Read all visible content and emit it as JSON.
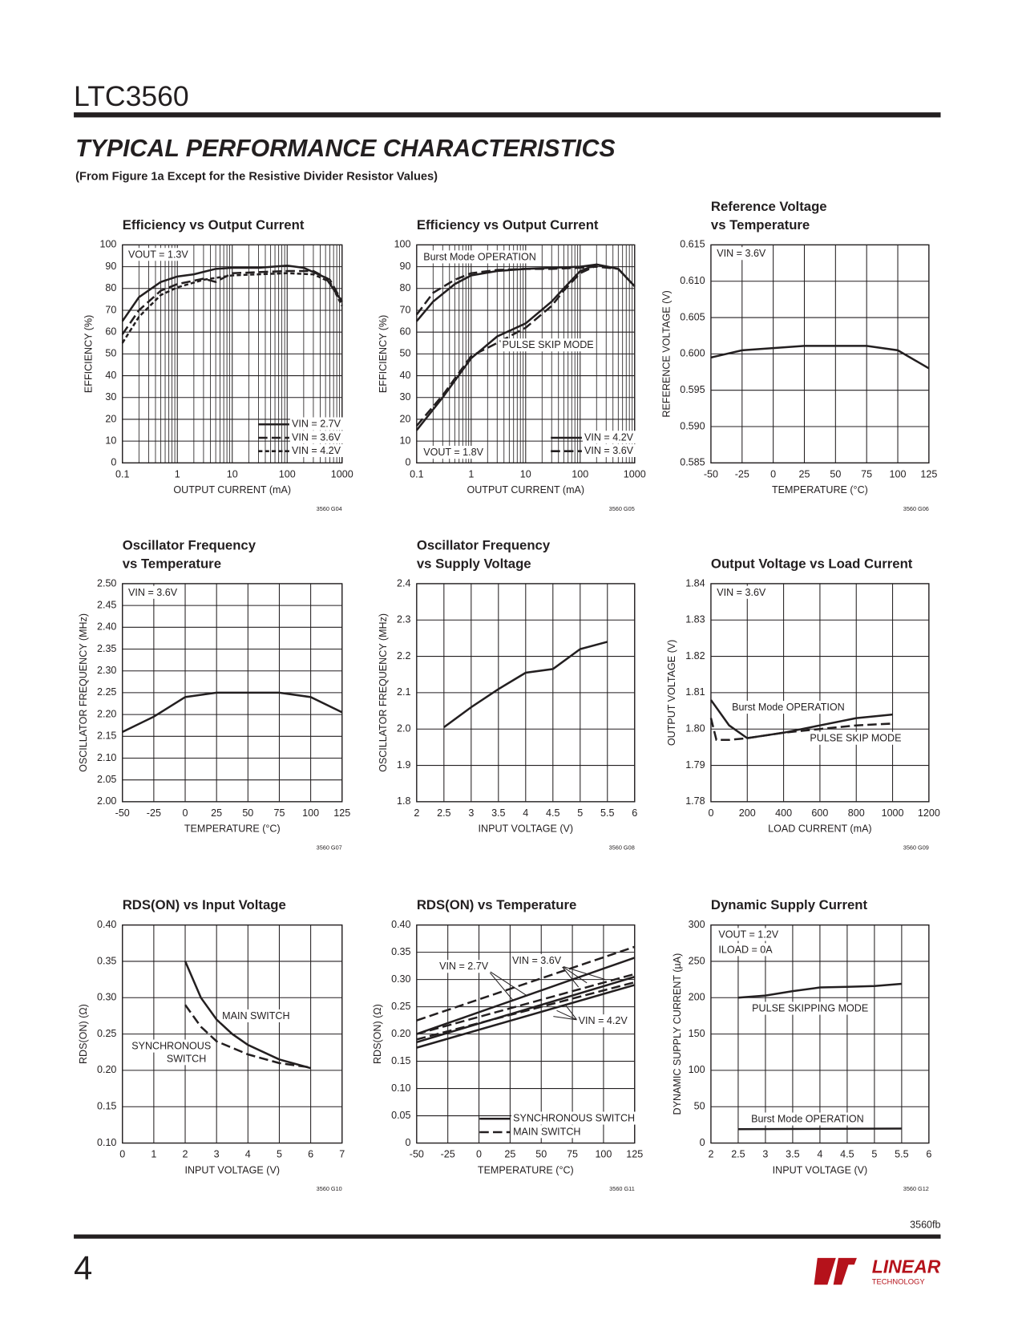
{
  "header": {
    "part": "LTC3560",
    "section": "TYPICAL PERFORMANCE CHARACTERISTICS",
    "subtitle": "(From Figure 1a Except for the Resistive Divider Resistor Values)"
  },
  "footer": {
    "doc_id": "3560fb",
    "page": "4",
    "logo_top": "LINEAR",
    "logo_bottom": "TECHNOLOGY"
  },
  "chart_data": [
    {
      "type": "line",
      "title": [
        "Efficiency vs Output Current"
      ],
      "xlabel": "OUTPUT CURRENT (mA)",
      "ylabel": "EFFICIENCY (%)",
      "figure_id": "3560 G04",
      "xlog": true,
      "grid": true,
      "color": "#231f20",
      "legend": "lower right",
      "xlim": [
        0.1,
        1000
      ],
      "xticks": [
        0.1,
        1,
        10,
        100,
        1000
      ],
      "ylim": [
        0,
        100
      ],
      "yticks": [
        0,
        10,
        20,
        30,
        40,
        50,
        60,
        70,
        80,
        90,
        100
      ],
      "annotations": [
        "VOUT = 1.3V"
      ],
      "series": [
        {
          "name": "VIN = 2.7V",
          "style": "solid",
          "curves": [
            {
              "x": [
                0.1,
                0.2,
                0.5,
                1,
                2,
                5,
                10,
                30,
                100,
                200,
                500,
                1000
              ],
              "y": [
                65,
                76,
                83,
                85.5,
                86.5,
                89,
                89.5,
                89.5,
                90.5,
                89.5,
                85,
                74
              ]
            }
          ]
        },
        {
          "name": "VIN = 3.6V",
          "style": "dashed",
          "curves": [
            {
              "x": [
                0.1,
                0.2,
                0.5,
                1,
                3,
                5,
                10,
                30,
                100,
                300,
                600,
                1000
              ],
              "y": [
                59,
                70,
                79,
                82,
                84.5,
                83,
                87,
                87.5,
                88,
                88,
                84,
                74
              ]
            }
          ]
        },
        {
          "name": "VIN = 4.2V",
          "style": "short",
          "curves": [
            {
              "x": [
                0.1,
                0.2,
                0.5,
                1,
                3,
                10,
                30,
                100,
                300,
                600,
                1000
              ],
              "y": [
                55,
                67,
                77,
                80.5,
                84,
                86,
                86.5,
                87,
                86.5,
                83,
                72
              ]
            }
          ]
        }
      ]
    },
    {
      "type": "line",
      "title": [
        "Efficiency vs Output Current"
      ],
      "xlabel": "OUTPUT CURRENT (mA)",
      "ylabel": "EFFICIENCY (%)",
      "figure_id": "3560 G05",
      "xlog": true,
      "grid": true,
      "color": "#231f20",
      "legend": "lower right",
      "xlim": [
        0.1,
        1000
      ],
      "xticks": [
        0.1,
        1,
        10,
        100,
        1000
      ],
      "ylim": [
        0,
        100
      ],
      "yticks": [
        0,
        10,
        20,
        30,
        40,
        50,
        60,
        70,
        80,
        90,
        100
      ],
      "annotations": [
        "Burst Mode OPERATION",
        "PULSE SKIP MODE",
        "VOUT = 1.8V"
      ],
      "series": [
        {
          "name": "VIN = 4.2V",
          "style": "solid",
          "curves": [
            {
              "x": [
                0.1,
                0.2,
                0.5,
                1,
                3,
                10,
                30,
                100,
                200,
                500,
                1000
              ],
              "y": [
                65,
                74,
                82,
                86,
                88,
                89,
                89.5,
                90,
                91,
                89,
                81
              ]
            },
            {
              "x": [
                0.1,
                0.3,
                1,
                3,
                10,
                30,
                50,
                100,
                200,
                500,
                1000
              ],
              "y": [
                15,
                30,
                48,
                58,
                64,
                74,
                80,
                88,
                91,
                89,
                81
              ]
            }
          ]
        },
        {
          "name": "VIN = 3.6V",
          "style": "dashed",
          "curves": [
            {
              "x": [
                0.1,
                0.2,
                0.5,
                1,
                3,
                10,
                30,
                100,
                200,
                500,
                1000
              ],
              "y": [
                68,
                78,
                84,
                87,
                88.5,
                89,
                89,
                89.5,
                90,
                89,
                81
              ]
            },
            {
              "x": [
                0.1,
                0.3,
                1,
                3,
                10,
                30,
                50,
                100,
                200
              ],
              "y": [
                17,
                31,
                49,
                55,
                62,
                72,
                79,
                87,
                90.5
              ]
            }
          ]
        }
      ]
    },
    {
      "type": "line",
      "title": [
        "Reference Voltage",
        "vs Temperature"
      ],
      "xlabel": "TEMPERATURE (°C)",
      "ylabel": "REFERENCE VOLTAGE (V)",
      "figure_id": "3560 G06",
      "grid": true,
      "color": "#231f20",
      "xlim": [
        -50,
        125
      ],
      "xticks": [
        -50,
        -25,
        0,
        25,
        50,
        75,
        100,
        125
      ],
      "ylim": [
        0.585,
        0.615
      ],
      "yticks": [
        0.585,
        {
          "value": 0.59,
          "label": "0.590"
        },
        0.595,
        {
          "value": 0.6,
          "label": "0.600"
        },
        0.605,
        {
          "value": 0.61,
          "label": "0.610"
        },
        0.615
      ],
      "annotations": [
        "VIN = 3.6V"
      ],
      "series": [
        {
          "style": "solid",
          "curves": [
            {
              "x": [
                -50,
                -25,
                0,
                25,
                50,
                75,
                100,
                125
              ],
              "y": [
                0.5995,
                0.6005,
                0.6008,
                0.6011,
                0.6011,
                0.6011,
                0.6005,
                0.598
              ]
            }
          ]
        }
      ]
    },
    {
      "type": "line",
      "title": [
        "Oscillator Frequency",
        "vs Temperature"
      ],
      "xlabel": "TEMPERATURE (°C)",
      "ylabel": "OSCILLATOR FREQUENCY (MHz)",
      "figure_id": "3560 G07",
      "grid": true,
      "color": "#231f20",
      "xlim": [
        -50,
        125
      ],
      "xticks": [
        -50,
        -25,
        0,
        25,
        50,
        75,
        100,
        125
      ],
      "ylim": [
        2,
        2.5
      ],
      "yticks": [
        {
          "value": 2,
          "label": "2.00"
        },
        2.05,
        {
          "value": 2.1,
          "label": "2.10"
        },
        2.15,
        {
          "value": 2.2,
          "label": "2.20"
        },
        2.25,
        {
          "value": 2.3,
          "label": "2.30"
        },
        2.35,
        {
          "value": 2.4,
          "label": "2.40"
        },
        2.45,
        {
          "value": 2.5,
          "label": "2.50"
        }
      ],
      "annotations": [
        "VIN = 3.6V"
      ],
      "series": [
        {
          "style": "solid",
          "curves": [
            {
              "x": [
                -50,
                -25,
                0,
                25,
                50,
                75,
                100,
                125
              ],
              "y": [
                2.16,
                2.195,
                2.24,
                2.25,
                2.25,
                2.25,
                2.24,
                2.205
              ]
            }
          ]
        }
      ]
    },
    {
      "type": "line",
      "title": [
        "Oscillator Frequency",
        "vs Supply Voltage"
      ],
      "xlabel": "INPUT VOLTAGE (V)",
      "ylabel": "OSCILLATOR FREQUENCY (MHz)",
      "figure_id": "3560 G08",
      "grid": true,
      "color": "#231f20",
      "xlim": [
        2,
        6
      ],
      "xticks": [
        2,
        2.5,
        3,
        3.5,
        4,
        4.5,
        5,
        5.5,
        6
      ],
      "ylim": [
        1.8,
        2.4
      ],
      "yticks": [
        1.8,
        1.9,
        {
          "value": 2,
          "label": "2.0"
        },
        2.1,
        2.2,
        2.3,
        2.4
      ],
      "annotations": [],
      "series": [
        {
          "style": "solid",
          "curves": [
            {
              "x": [
                2.5,
                3,
                3.5,
                4,
                4.5,
                5,
                5.5
              ],
              "y": [
                2.005,
                2.06,
                2.11,
                2.155,
                2.165,
                2.22,
                2.24
              ]
            }
          ]
        }
      ]
    },
    {
      "type": "line",
      "title": [
        "Output Voltage vs Load Current"
      ],
      "xlabel": "LOAD CURRENT (mA)",
      "ylabel": "OUTPUT VOLTAGE (V)",
      "figure_id": "3560 G09",
      "grid": true,
      "color": "#231f20",
      "xlim": [
        0,
        1200
      ],
      "xticks": [
        0,
        200,
        400,
        600,
        800,
        1000,
        1200
      ],
      "ylim": [
        1.78,
        1.84
      ],
      "yticks": [
        1.78,
        1.79,
        {
          "value": 1.8,
          "label": "1.80"
        },
        1.81,
        1.82,
        1.83,
        1.84
      ],
      "annotations": [
        "VIN = 3.6V",
        "Burst Mode OPERATION",
        "PULSE SKIP MODE"
      ],
      "series": [
        {
          "style": "solid",
          "curves": [
            {
              "x": [
                0,
                100,
                200,
                400,
                600,
                800,
                1000
              ],
              "y": [
                1.808,
                1.801,
                1.7975,
                1.799,
                1.801,
                1.803,
                1.804
              ]
            }
          ]
        },
        {
          "style": "dashed",
          "curves": [
            {
              "x": [
                0,
                30,
                100,
                200,
                400,
                600,
                800,
                1000
              ],
              "y": [
                1.803,
                1.797,
                1.797,
                1.7975,
                1.799,
                1.8,
                1.801,
                1.8015
              ]
            }
          ]
        }
      ]
    },
    {
      "type": "line",
      "title": [
        "RDS(ON) vs Input  Voltage"
      ],
      "xlabel": "INPUT VOLTAGE (V)",
      "ylabel": "RDS(ON) (Ω)",
      "figure_id": "3560 G10",
      "grid": true,
      "color": "#231f20",
      "xlim": [
        0,
        7
      ],
      "xticks": [
        0,
        1,
        2,
        3,
        4,
        5,
        6,
        7
      ],
      "ylim": [
        0.1,
        0.4
      ],
      "yticks": [
        {
          "value": 0.1,
          "label": "0.10"
        },
        0.15,
        {
          "value": 0.2,
          "label": "0.20"
        },
        0.25,
        {
          "value": 0.3,
          "label": "0.30"
        },
        0.35,
        {
          "value": 0.4,
          "label": "0.40"
        }
      ],
      "annotations": [
        "MAIN SWITCH",
        "SYNCHRONOUS",
        "SWITCH"
      ],
      "series": [
        {
          "style": "solid",
          "curves": [
            {
              "x": [
                2,
                2.5,
                3,
                3.5,
                4,
                5,
                6
              ],
              "y": [
                0.35,
                0.3,
                0.27,
                0.25,
                0.235,
                0.215,
                0.203
              ]
            }
          ]
        },
        {
          "style": "dashed",
          "curves": [
            {
              "x": [
                2,
                2.5,
                3,
                4,
                5,
                6
              ],
              "y": [
                0.29,
                0.26,
                0.24,
                0.222,
                0.21,
                0.204
              ]
            }
          ]
        }
      ]
    },
    {
      "type": "line",
      "title": [
        "RDS(ON) vs Temperature"
      ],
      "xlabel": "TEMPERATURE (°C)",
      "ylabel": "RDS(ON) (Ω)",
      "figure_id": "3560 G11",
      "grid": true,
      "color": "#231f20",
      "legend": "lower center",
      "xlim": [
        -50,
        125
      ],
      "xticks": [
        -50,
        -25,
        0,
        25,
        50,
        75,
        100,
        125
      ],
      "ylim": [
        0,
        0.4
      ],
      "yticks": [
        0,
        0.05,
        {
          "value": 0.1,
          "label": "0.10"
        },
        0.15,
        {
          "value": 0.2,
          "label": "0.20"
        },
        0.25,
        {
          "value": 0.3,
          "label": "0.30"
        },
        0.35,
        {
          "value": 0.4,
          "label": "0.40"
        }
      ],
      "annotations": [
        "VIN = 2.7V",
        "VIN = 3.6V",
        "VIN = 4.2V"
      ],
      "series": [
        {
          "name": "SYNCHRONOUS SWITCH",
          "style": "solid",
          "curves": [
            {
              "x": [
                -50,
                125
              ],
              "y": [
                0.2,
                0.34
              ]
            },
            {
              "x": [
                -50,
                125
              ],
              "y": [
                0.185,
                0.305
              ]
            },
            {
              "x": [
                -50,
                125
              ],
              "y": [
                0.175,
                0.29
              ]
            }
          ]
        },
        {
          "name": "MAIN SWITCH",
          "style": "dashed",
          "curves": [
            {
              "x": [
                -50,
                125
              ],
              "y": [
                0.225,
                0.36
              ]
            },
            {
              "x": [
                -50,
                125
              ],
              "y": [
                0.2,
                0.31
              ]
            },
            {
              "x": [
                -50,
                125
              ],
              "y": [
                0.19,
                0.295
              ]
            }
          ]
        }
      ]
    },
    {
      "type": "line",
      "title": [
        "Dynamic Supply Current"
      ],
      "xlabel": "INPUT VOLTAGE (V)",
      "ylabel": "DYNAMIC SUPPLY CURRENT (µA)",
      "figure_id": "3560 G12",
      "grid": true,
      "color": "#231f20",
      "xlim": [
        2,
        6
      ],
      "xticks": [
        2,
        2.5,
        3,
        3.5,
        4,
        4.5,
        5,
        5.5,
        6
      ],
      "ylim": [
        0,
        300
      ],
      "yticks": [
        0,
        50,
        100,
        150,
        200,
        250,
        300
      ],
      "annotations": [
        "VOUT = 1.2V",
        "ILOAD = 0A",
        "PULSE SKIPPING MODE",
        "Burst Mode OPERATION"
      ],
      "series": [
        {
          "style": "solid",
          "curves": [
            {
              "x": [
                2.5,
                3,
                3.5,
                4,
                4.5,
                5,
                5.5
              ],
              "y": [
                200,
                203,
                209,
                214,
                215,
                216,
                219
              ]
            }
          ]
        },
        {
          "style": "solid",
          "curves": [
            {
              "x": [
                2.5,
                5.5
              ],
              "y": [
                19,
                20
              ]
            }
          ]
        }
      ]
    }
  ]
}
